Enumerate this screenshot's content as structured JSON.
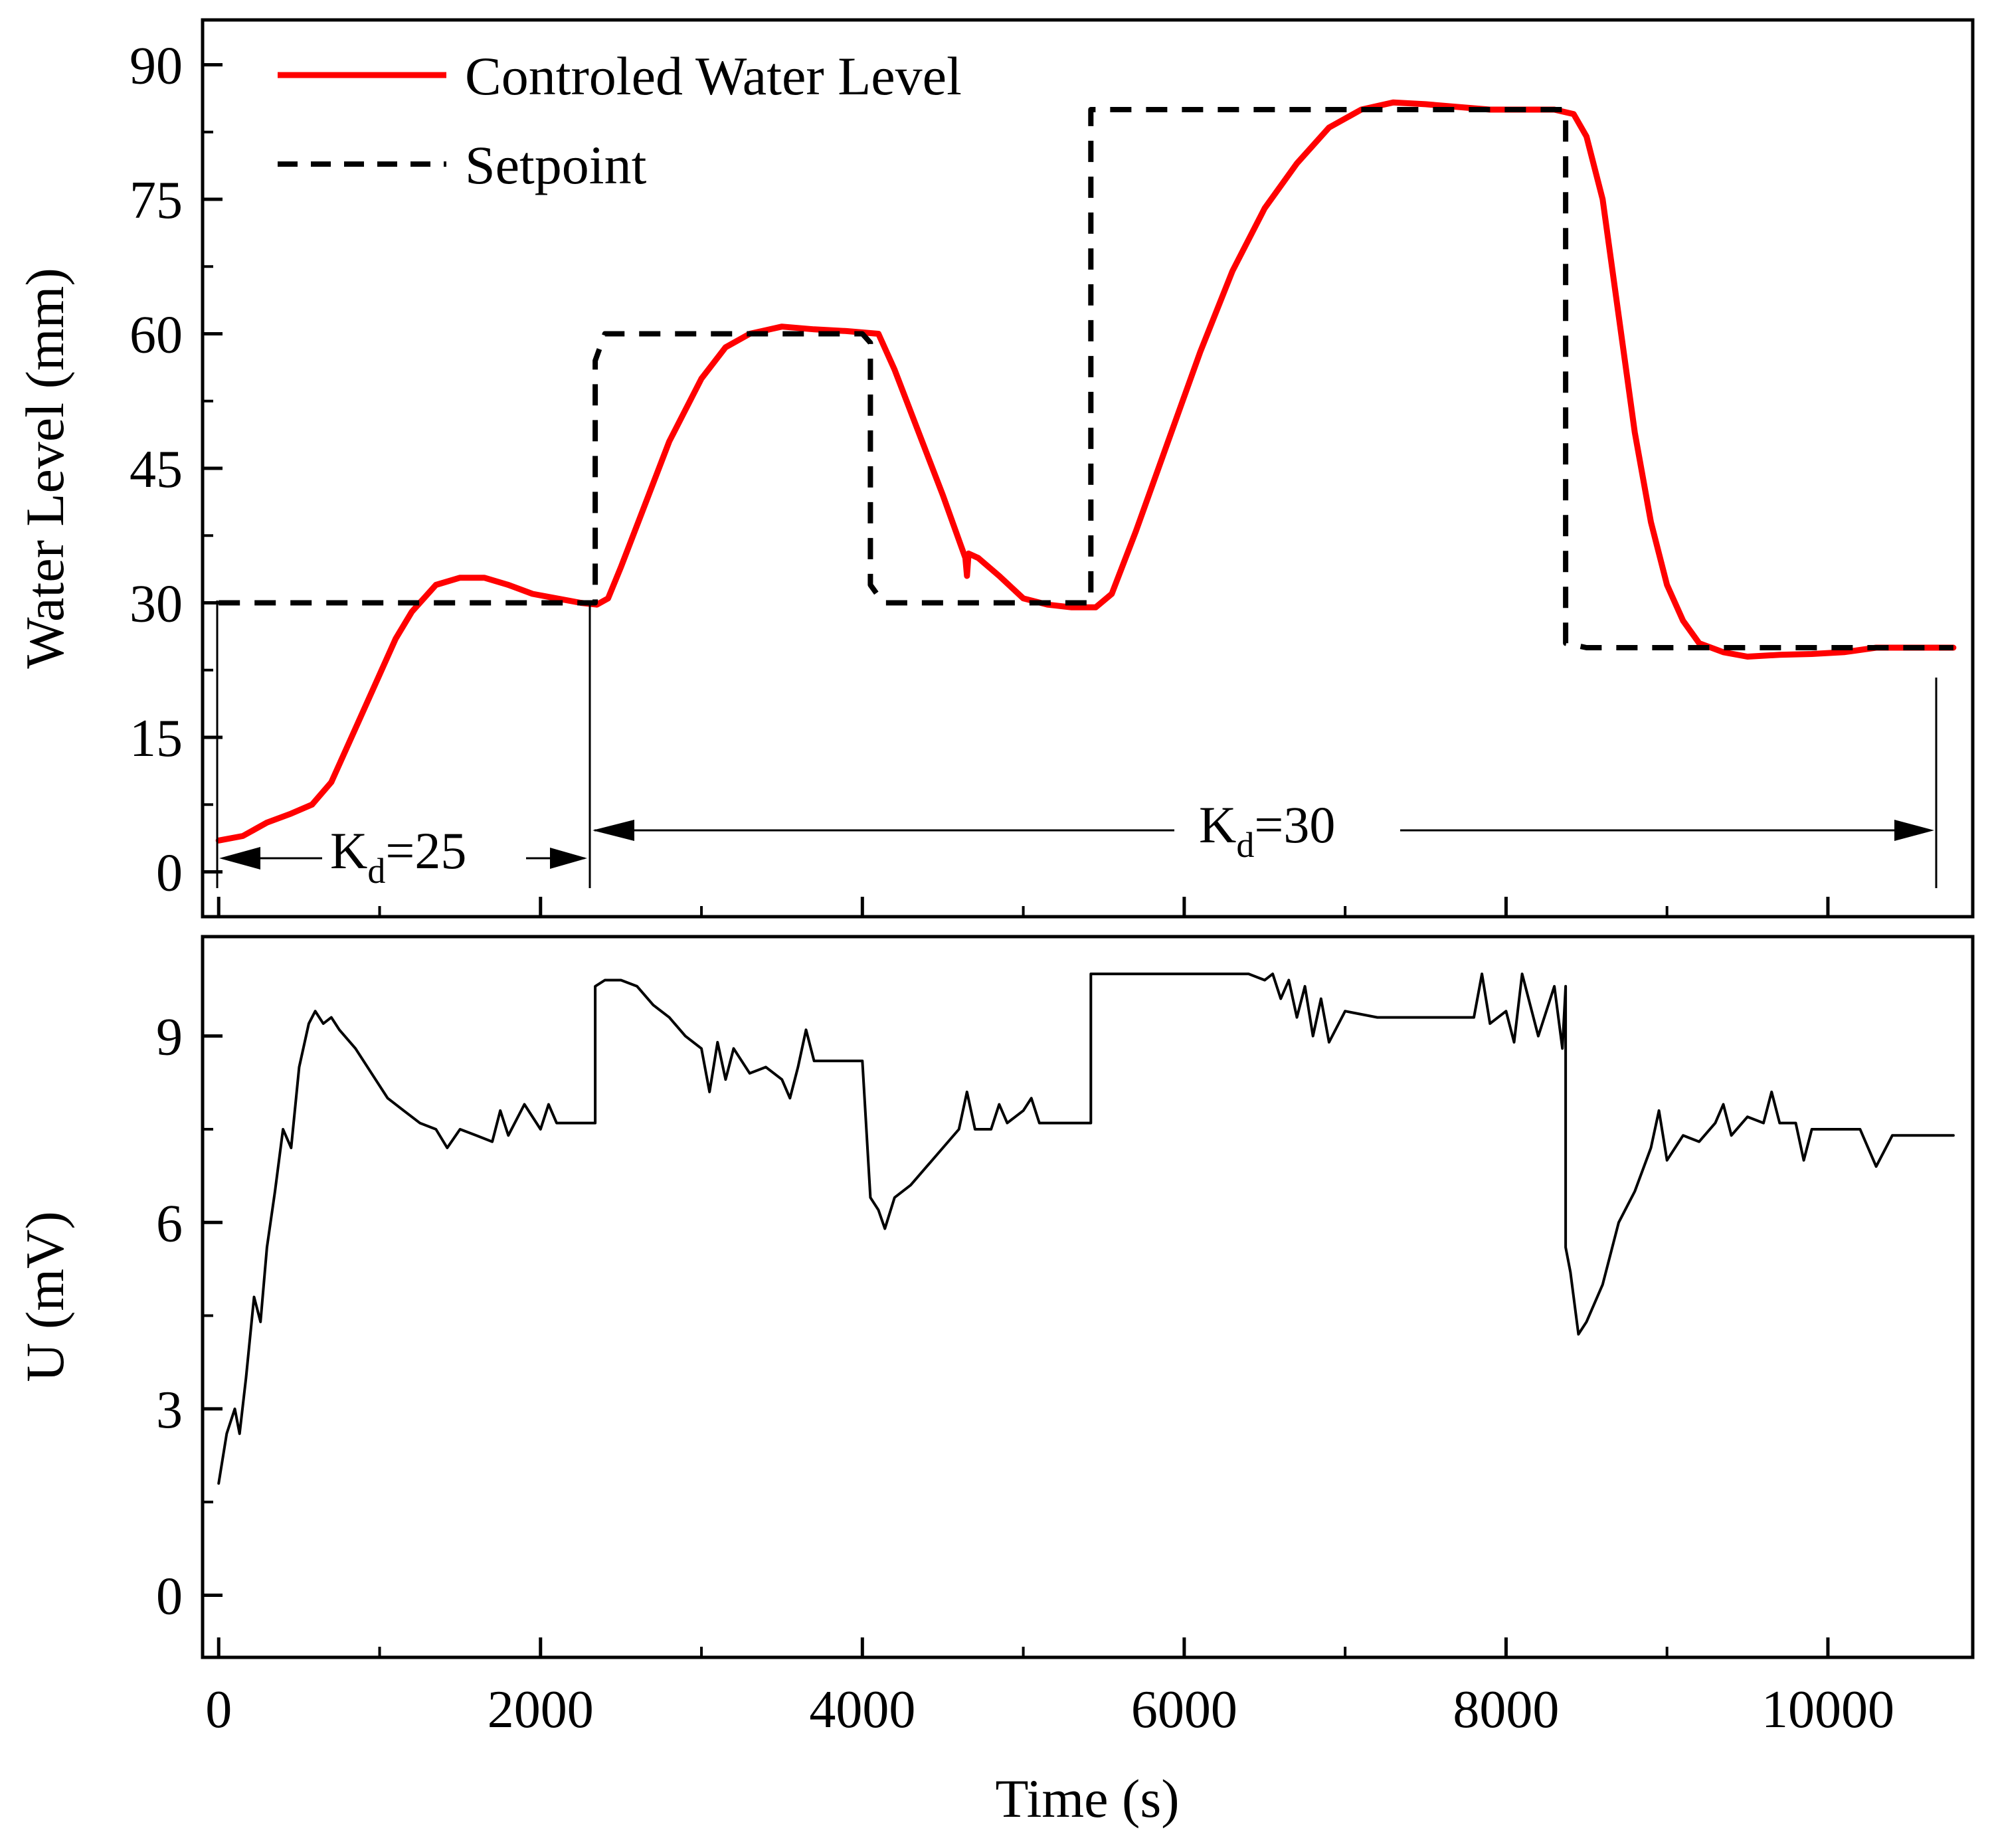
{
  "chart_data": [
    {
      "type": "line",
      "panel": "top",
      "xlabel": "Time (s)",
      "ylabel": "Water Level (mm)",
      "xlim": [
        -100,
        10900
      ],
      "ylim": [
        -5,
        95
      ],
      "xticks": [
        0,
        2000,
        4000,
        6000,
        8000,
        10000
      ],
      "yticks": [
        0,
        15,
        30,
        45,
        60,
        75,
        90
      ],
      "ytick_labels": [
        "0",
        "15",
        "30",
        "45",
        "60",
        "75",
        "90"
      ],
      "legend_position": "top-left",
      "series": [
        {
          "name": "Controled Water Level",
          "color": "#ff0000",
          "style": "solid",
          "points": [
            [
              0,
              3.5
            ],
            [
              150,
              4
            ],
            [
              300,
              5.5
            ],
            [
              450,
              6.5
            ],
            [
              580,
              7.5
            ],
            [
              700,
              10
            ],
            [
              850,
              16
            ],
            [
              1000,
              22
            ],
            [
              1100,
              26
            ],
            [
              1200,
              29
            ],
            [
              1350,
              32
            ],
            [
              1500,
              32.8
            ],
            [
              1650,
              32.8
            ],
            [
              1800,
              32
            ],
            [
              1950,
              31
            ],
            [
              2100,
              30.5
            ],
            [
              2250,
              30
            ],
            [
              2350,
              29.8
            ],
            [
              2420,
              30.5
            ],
            [
              2500,
              34
            ],
            [
              2650,
              41
            ],
            [
              2800,
              48
            ],
            [
              3000,
              55
            ],
            [
              3150,
              58.5
            ],
            [
              3300,
              60
            ],
            [
              3500,
              60.8
            ],
            [
              3700,
              60.5
            ],
            [
              3900,
              60.3
            ],
            [
              4100,
              60
            ],
            [
              4200,
              56
            ],
            [
              4350,
              49
            ],
            [
              4500,
              42
            ],
            [
              4600,
              37
            ],
            [
              4640,
              35
            ],
            [
              4650,
              33
            ],
            [
              4660,
              35.5
            ],
            [
              4720,
              35
            ],
            [
              4850,
              33
            ],
            [
              5000,
              30.5
            ],
            [
              5150,
              29.8
            ],
            [
              5300,
              29.5
            ],
            [
              5450,
              29.5
            ],
            [
              5550,
              31
            ],
            [
              5700,
              38
            ],
            [
              5900,
              48
            ],
            [
              6100,
              58
            ],
            [
              6300,
              67
            ],
            [
              6500,
              74
            ],
            [
              6700,
              79
            ],
            [
              6900,
              83
            ],
            [
              7100,
              85
            ],
            [
              7300,
              85.8
            ],
            [
              7500,
              85.6
            ],
            [
              7700,
              85.3
            ],
            [
              7900,
              85
            ],
            [
              8100,
              85
            ],
            [
              8300,
              85
            ],
            [
              8420,
              84.5
            ],
            [
              8500,
              82
            ],
            [
              8600,
              75
            ],
            [
              8700,
              62
            ],
            [
              8800,
              49
            ],
            [
              8900,
              39
            ],
            [
              9000,
              32
            ],
            [
              9100,
              28
            ],
            [
              9200,
              25.5
            ],
            [
              9350,
              24.5
            ],
            [
              9500,
              24
            ],
            [
              9700,
              24.2
            ],
            [
              9900,
              24.3
            ],
            [
              10100,
              24.5
            ],
            [
              10300,
              25
            ],
            [
              10500,
              25
            ],
            [
              10780,
              25
            ]
          ]
        },
        {
          "name": "Setpoint",
          "color": "#000000",
          "style": "dashed",
          "points": [
            [
              0,
              30
            ],
            [
              2340,
              30
            ],
            [
              2340,
              57
            ],
            [
              2400,
              60
            ],
            [
              4000,
              60
            ],
            [
              4050,
              59
            ],
            [
              4050,
              32
            ],
            [
              4130,
              30
            ],
            [
              5420,
              30
            ],
            [
              5420,
              85
            ],
            [
              8370,
              85
            ],
            [
              8370,
              25.5
            ],
            [
              8500,
              25
            ],
            [
              10780,
              25
            ]
          ]
        }
      ],
      "annotations": [
        {
          "label": "K",
          "subscript": "d",
          "value": "=25",
          "x_range": [
            0,
            2340
          ]
        },
        {
          "label": "K",
          "subscript": "d",
          "value": "=30",
          "x_range": [
            2340,
            10780
          ]
        }
      ]
    },
    {
      "type": "line",
      "panel": "bottom",
      "xlabel": "Time (s)",
      "ylabel": "U (mV)",
      "xlim": [
        -100,
        10900
      ],
      "ylim": [
        -1,
        10.6
      ],
      "xticks": [
        0,
        2000,
        4000,
        6000,
        8000,
        10000
      ],
      "xtick_labels": [
        "0",
        "2000",
        "4000",
        "6000",
        "8000",
        "10000"
      ],
      "yticks": [
        0,
        3,
        6,
        9
      ],
      "ytick_labels": [
        "0",
        "3",
        "6",
        "9"
      ],
      "series": [
        {
          "name": "U",
          "color": "#000000",
          "style": "solid",
          "points": [
            [
              0,
              1.8
            ],
            [
              50,
              2.6
            ],
            [
              100,
              3
            ],
            [
              130,
              2.6
            ],
            [
              170,
              3.5
            ],
            [
              220,
              4.8
            ],
            [
              260,
              4.4
            ],
            [
              300,
              5.6
            ],
            [
              350,
              6.5
            ],
            [
              400,
              7.5
            ],
            [
              450,
              7.2
            ],
            [
              500,
              8.5
            ],
            [
              560,
              9.2
            ],
            [
              600,
              9.4
            ],
            [
              650,
              9.2
            ],
            [
              700,
              9.3
            ],
            [
              750,
              9.1
            ],
            [
              850,
              8.8
            ],
            [
              950,
              8.4
            ],
            [
              1050,
              8
            ],
            [
              1150,
              7.8
            ],
            [
              1250,
              7.6
            ],
            [
              1350,
              7.5
            ],
            [
              1420,
              7.2
            ],
            [
              1500,
              7.5
            ],
            [
              1600,
              7.4
            ],
            [
              1700,
              7.3
            ],
            [
              1750,
              7.8
            ],
            [
              1800,
              7.4
            ],
            [
              1900,
              7.9
            ],
            [
              2000,
              7.5
            ],
            [
              2050,
              7.9
            ],
            [
              2100,
              7.6
            ],
            [
              2300,
              7.6
            ],
            [
              2340,
              7.6
            ],
            [
              2340,
              9.8
            ],
            [
              2400,
              9.9
            ],
            [
              2500,
              9.9
            ],
            [
              2600,
              9.8
            ],
            [
              2700,
              9.5
            ],
            [
              2800,
              9.3
            ],
            [
              2900,
              9.0
            ],
            [
              3000,
              8.8
            ],
            [
              3050,
              8.1
            ],
            [
              3100,
              8.9
            ],
            [
              3150,
              8.3
            ],
            [
              3200,
              8.8
            ],
            [
              3300,
              8.4
            ],
            [
              3400,
              8.5
            ],
            [
              3500,
              8.3
            ],
            [
              3550,
              8.0
            ],
            [
              3600,
              8.5
            ],
            [
              3650,
              9.1
            ],
            [
              3700,
              8.6
            ],
            [
              3800,
              8.6
            ],
            [
              4000,
              8.6
            ],
            [
              4050,
              6.4
            ],
            [
              4100,
              6.2
            ],
            [
              4140,
              5.9
            ],
            [
              4200,
              6.4
            ],
            [
              4300,
              6.6
            ],
            [
              4400,
              6.9
            ],
            [
              4500,
              7.2
            ],
            [
              4600,
              7.5
            ],
            [
              4650,
              8.1
            ],
            [
              4700,
              7.5
            ],
            [
              4800,
              7.5
            ],
            [
              4850,
              7.9
            ],
            [
              4900,
              7.6
            ],
            [
              5000,
              7.8
            ],
            [
              5050,
              8.0
            ],
            [
              5100,
              7.6
            ],
            [
              5200,
              7.6
            ],
            [
              5400,
              7.6
            ],
            [
              5420,
              7.6
            ],
            [
              5420,
              10
            ],
            [
              6400,
              10
            ],
            [
              6500,
              9.9
            ],
            [
              6550,
              10
            ],
            [
              6600,
              9.6
            ],
            [
              6650,
              9.9
            ],
            [
              6700,
              9.3
            ],
            [
              6750,
              9.8
            ],
            [
              6800,
              9.0
            ],
            [
              6850,
              9.6
            ],
            [
              6900,
              8.9
            ],
            [
              7000,
              9.4
            ],
            [
              7200,
              9.3
            ],
            [
              7500,
              9.3
            ],
            [
              7800,
              9.3
            ],
            [
              7850,
              10
            ],
            [
              7900,
              9.2
            ],
            [
              8000,
              9.4
            ],
            [
              8050,
              8.9
            ],
            [
              8100,
              10
            ],
            [
              8200,
              9.0
            ],
            [
              8300,
              9.8
            ],
            [
              8350,
              8.8
            ],
            [
              8370,
              9.8
            ],
            [
              8370,
              5.6
            ],
            [
              8400,
              5.2
            ],
            [
              8450,
              4.2
            ],
            [
              8500,
              4.4
            ],
            [
              8600,
              5
            ],
            [
              8700,
              6
            ],
            [
              8800,
              6.5
            ],
            [
              8900,
              7.2
            ],
            [
              8950,
              7.8
            ],
            [
              9000,
              7.0
            ],
            [
              9100,
              7.4
            ],
            [
              9200,
              7.3
            ],
            [
              9300,
              7.6
            ],
            [
              9350,
              7.9
            ],
            [
              9400,
              7.4
            ],
            [
              9500,
              7.7
            ],
            [
              9600,
              7.6
            ],
            [
              9650,
              8.1
            ],
            [
              9700,
              7.6
            ],
            [
              9800,
              7.6
            ],
            [
              9850,
              7.0
            ],
            [
              9900,
              7.5
            ],
            [
              10000,
              7.5
            ],
            [
              10200,
              7.5
            ],
            [
              10300,
              6.9
            ],
            [
              10400,
              7.4
            ],
            [
              10600,
              7.4
            ],
            [
              10780,
              7.4
            ]
          ]
        }
      ]
    }
  ],
  "labels": {
    "top_ylabel": "Water Level (mm)",
    "bottom_ylabel": "U (mV)",
    "xlabel": "Time (s)",
    "legend_series_1": "Controled Water Level",
    "legend_series_2": "Setpoint",
    "kd_symbol": "K",
    "kd_sub": "d",
    "kd25_value": "=25",
    "kd30_value": "=30"
  }
}
